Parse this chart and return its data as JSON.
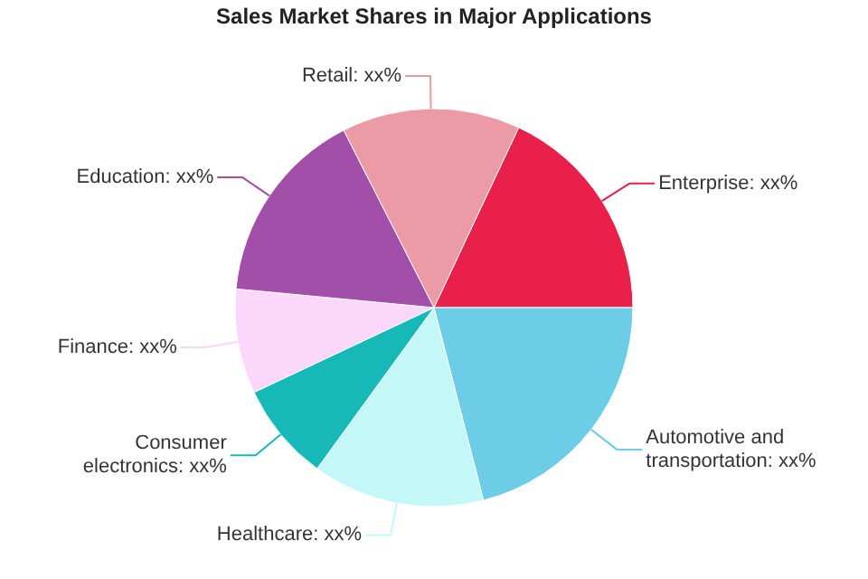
{
  "chart_data": {
    "type": "pie",
    "title": "Sales Market Shares in Major Applications",
    "categories": [
      "Enterprise: xx%",
      "Automotive and transportation: xx%",
      "Healthcare: xx%",
      "Consumer electronics: xx%",
      "Finance: xx%",
      "Education: xx%",
      "Retail: xx%"
    ],
    "values": [
      18,
      21,
      14,
      8,
      8.5,
      16,
      14.5
    ],
    "colors": [
      "#e8204a",
      "#6dcde6",
      "#c4f7f7",
      "#17b8b8",
      "#fcd7fc",
      "#a14fa8",
      "#eb9aa6"
    ]
  }
}
